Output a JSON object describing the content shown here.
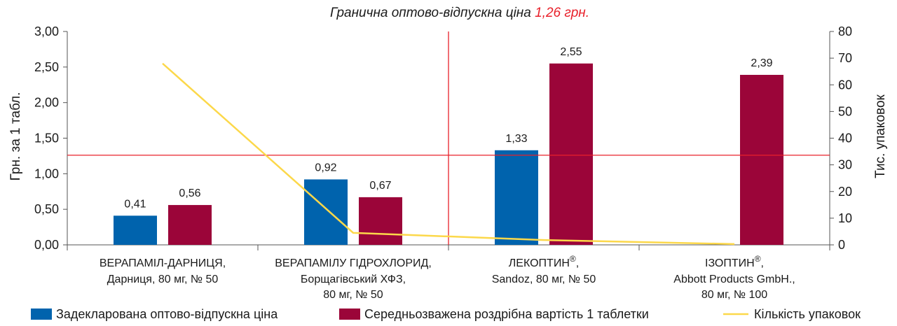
{
  "title": {
    "text": "Гранична оптово-відпускна ціна",
    "value": "1,26 грн.",
    "value_color": "#e8202a"
  },
  "chart_data": {
    "type": "bar",
    "categories": [
      {
        "line1": "ВЕРАПАМІЛ-ДАРНИЦЯ,",
        "line1_sup": "",
        "line2": "Дарниця, 80 мг, № 50",
        "line3": ""
      },
      {
        "line1": "ВЕРАПАМІЛУ ГІДРОХЛОРИД,",
        "line1_sup": "",
        "line2": "Борщагівський ХФЗ,",
        "line3": "80 мг, № 50"
      },
      {
        "line1": "ЛЕКОПТИН",
        "line1_sup": "®",
        "line1_end": ",",
        "line2": "Sandoz, 80 мг, № 50",
        "line3": ""
      },
      {
        "line1": "ІЗОПТИН",
        "line1_sup": "®",
        "line1_end": ",",
        "line2": "Abbott Products GmbH.,",
        "line3": "80 мг, № 100"
      }
    ],
    "series": [
      {
        "name": "Задекларована оптово-відпускна ціна",
        "color": "#0063ad",
        "axis": "left",
        "values": [
          0.41,
          0.92,
          1.33,
          null
        ],
        "labels": [
          "0,41",
          "0,92",
          "1,33",
          ""
        ]
      },
      {
        "name": "Середньозважена роздрібна вартість 1 таблетки",
        "color": "#9b0539",
        "axis": "left",
        "values": [
          0.56,
          0.67,
          2.55,
          2.39
        ],
        "labels": [
          "0,56",
          "0,67",
          "2,55",
          "2,39"
        ]
      },
      {
        "name": "Кількість упаковок",
        "color": "#fcd84a",
        "axis": "right",
        "line": true,
        "values": [
          68,
          4.5,
          1.8,
          0.3
        ]
      }
    ],
    "ylabel": "Грн. за 1 табл.",
    "y2label": "Тис. упаковок",
    "ylim": [
      0,
      3
    ],
    "y2lim": [
      0,
      80
    ],
    "yticks": [
      "0,00",
      "0,50",
      "1,00",
      "1,50",
      "2,00",
      "2,50",
      "3,00"
    ],
    "y2ticks": [
      "0",
      "10",
      "20",
      "30",
      "40",
      "50",
      "60",
      "70",
      "80"
    ],
    "reference_line": {
      "value": 1.26,
      "color": "#e8202a"
    },
    "vertical_line": {
      "after_category": 1,
      "color": "#e8202a"
    }
  }
}
